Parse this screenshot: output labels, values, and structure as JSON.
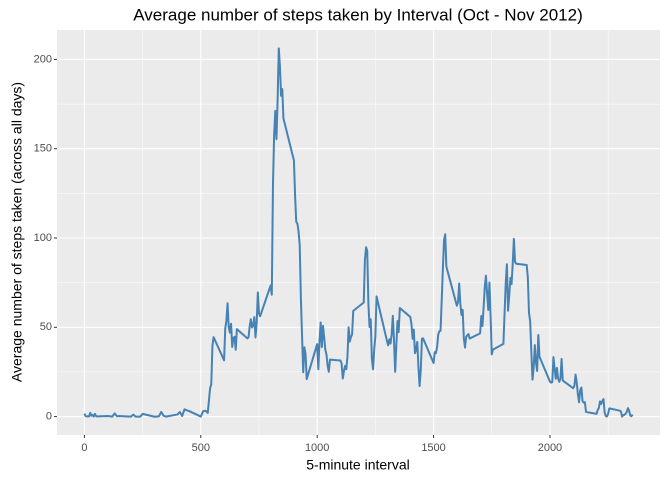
{
  "chart_data": {
    "type": "line",
    "title": "Average number of steps taken by Interval (Oct - Nov 2012)",
    "x_label": "5-minute interval",
    "y_label": "Average number of steps taken (across all days)",
    "xlim": [
      -117.75,
      2472.75
    ],
    "ylim": [
      -10.31,
      216.48
    ],
    "xticks": [
      0,
      500,
      1000,
      1500,
      2000
    ],
    "yticks": [
      0,
      50,
      100,
      150,
      200
    ],
    "minor_xticks": [
      250,
      750,
      1250,
      1750,
      2250
    ],
    "minor_yticks": [
      25,
      75,
      125,
      175
    ],
    "grid": true,
    "x": [
      0,
      5,
      10,
      15,
      20,
      25,
      30,
      35,
      40,
      45,
      50,
      55,
      100,
      110,
      120,
      130,
      140,
      150,
      200,
      210,
      220,
      230,
      240,
      250,
      300,
      310,
      320,
      330,
      340,
      350,
      400,
      410,
      420,
      430,
      440,
      450,
      500,
      510,
      520,
      530,
      540,
      545,
      550,
      555,
      600,
      605,
      610,
      615,
      620,
      625,
      630,
      635,
      640,
      645,
      650,
      655,
      700,
      705,
      710,
      715,
      720,
      725,
      730,
      735,
      740,
      745,
      750,
      755,
      800,
      805,
      810,
      815,
      820,
      825,
      830,
      835,
      840,
      845,
      850,
      855,
      900,
      905,
      910,
      915,
      920,
      925,
      930,
      935,
      940,
      945,
      950,
      955,
      1000,
      1005,
      1010,
      1015,
      1020,
      1025,
      1030,
      1035,
      1040,
      1045,
      1050,
      1055,
      1100,
      1105,
      1110,
      1115,
      1120,
      1125,
      1130,
      1135,
      1140,
      1145,
      1150,
      1155,
      1200,
      1205,
      1210,
      1215,
      1220,
      1225,
      1230,
      1235,
      1240,
      1245,
      1250,
      1255,
      1300,
      1305,
      1310,
      1315,
      1320,
      1325,
      1330,
      1335,
      1340,
      1345,
      1350,
      1355,
      1400,
      1405,
      1410,
      1415,
      1420,
      1425,
      1430,
      1435,
      1440,
      1445,
      1450,
      1455,
      1500,
      1505,
      1510,
      1515,
      1520,
      1525,
      1530,
      1535,
      1540,
      1545,
      1550,
      1555,
      1600,
      1605,
      1610,
      1615,
      1620,
      1625,
      1630,
      1635,
      1640,
      1645,
      1650,
      1655,
      1700,
      1705,
      1710,
      1715,
      1720,
      1725,
      1730,
      1735,
      1740,
      1745,
      1750,
      1755,
      1800,
      1805,
      1810,
      1815,
      1820,
      1825,
      1830,
      1835,
      1840,
      1845,
      1850,
      1855,
      1900,
      1905,
      1910,
      1915,
      1920,
      1925,
      1930,
      1935,
      1940,
      1945,
      1950,
      1955,
      2000,
      2005,
      2010,
      2015,
      2020,
      2025,
      2030,
      2035,
      2040,
      2045,
      2050,
      2055,
      2100,
      2105,
      2110,
      2115,
      2120,
      2125,
      2130,
      2135,
      2140,
      2145,
      2150,
      2155,
      2200,
      2205,
      2210,
      2215,
      2220,
      2225,
      2230,
      2235,
      2240,
      2245,
      2250,
      2255,
      2300,
      2305,
      2310,
      2315,
      2320,
      2325,
      2330,
      2335,
      2340,
      2345,
      2350,
      2355
    ],
    "series": [
      {
        "color": "#4682b4",
        "values": [
          1.7,
          0.3,
          0.1,
          0.2,
          0.1,
          2.1,
          0.5,
          0.9,
          0,
          1.5,
          0.3,
          0.1,
          0.3,
          0.2,
          0,
          1.8,
          0.2,
          0.3,
          0,
          1.1,
          0,
          0,
          0,
          1.5,
          0,
          0,
          0.2,
          2.6,
          0.5,
          0,
          1.2,
          2.6,
          0.3,
          4.1,
          3.5,
          3.1,
          0,
          3.0,
          3.3,
          2.1,
          16,
          18,
          39.5,
          44.5,
          31.5,
          49.3,
          53.8,
          63.5,
          50,
          47,
          52,
          39,
          44,
          44.7,
          37.4,
          49,
          43.8,
          44.4,
          50.5,
          54.5,
          49.9,
          50.9,
          55.7,
          44.3,
          52.3,
          69.5,
          57.8,
          56.2,
          73.4,
          68.2,
          129.4,
          157.5,
          171.2,
          155.4,
          177.3,
          206.2,
          195.9,
          179.6,
          183.4,
          167,
          143.5,
          124,
          109.1,
          108.1,
          103.7,
          95.9,
          66.2,
          45.2,
          24.8,
          38.8,
          35,
          21,
          40.6,
          26.5,
          42.4,
          52.7,
          38.9,
          50.8,
          44.3,
          37.4,
          34.7,
          28.3,
          25.1,
          31.9,
          31.4,
          29.7,
          21.3,
          25.5,
          28.4,
          26.5,
          33.4,
          50,
          42,
          44.6,
          46,
          59.2,
          63.9,
          87.7,
          94.8,
          92.8,
          63.4,
          50.2,
          54.5,
          32.4,
          26.5,
          37.7,
          45.1,
          67.3,
          42.3,
          39.9,
          43.3,
          40.9,
          46.2,
          56.4,
          42.8,
          25.1,
          39.9,
          53.5,
          47.3,
          60.8,
          55.8,
          51.9,
          43.6,
          48.7,
          35.5,
          37.5,
          41.8,
          27.5,
          17.1,
          26.1,
          43.6,
          43.8,
          30,
          36.1,
          35.5,
          38.8,
          45.9,
          47.8,
          48.1,
          65.3,
          82.9,
          98.7,
          102.1,
          84,
          62.1,
          64.1,
          74.5,
          63.2,
          56.9,
          59.8,
          43.9,
          38.6,
          44.7,
          45.5,
          46.2,
          43.7,
          46.6,
          56.3,
          50.7,
          61.2,
          72.7,
          78.9,
          68.9,
          59.7,
          75.1,
          56.5,
          34.8,
          37.5,
          40.7,
          58,
          74.7,
          85.3,
          59.3,
          67.8,
          77.7,
          74.2,
          85.3,
          99.5,
          86.6,
          85.6,
          84.9,
          77.8,
          58,
          53.4,
          36.3,
          20.7,
          27.4,
          40,
          30.2,
          25.5,
          45.7,
          33.5,
          19.6,
          19,
          19.3,
          33.3,
          26.8,
          21.2,
          27.3,
          21.3,
          19.5,
          21.3,
          32.3,
          20.2,
          15.9,
          17.2,
          23.5,
          19.2,
          12.5,
          8,
          14.7,
          16.3,
          8.7,
          7.8,
          8.1,
          2.6,
          1.5,
          3.7,
          4.8,
          8.5,
          7.1,
          8.7,
          9.8,
          2.2,
          0.3,
          0.1,
          1.6,
          4.6,
          3.3,
          2.8,
          0,
          0.8,
          1,
          1.6,
          2.6,
          4.7,
          3.3,
          0.6,
          0.2,
          1.1
        ]
      }
    ]
  }
}
